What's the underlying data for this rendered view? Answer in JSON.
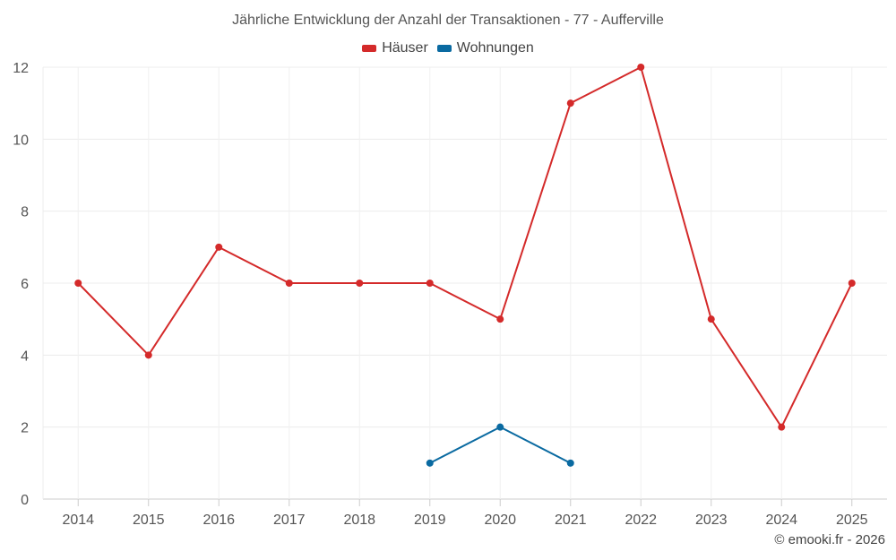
{
  "chart_data": {
    "type": "line",
    "title": "Jährliche Entwicklung der Anzahl der Transaktionen - 77 - Aufferville",
    "x": [
      "2014",
      "2015",
      "2016",
      "2017",
      "2018",
      "2019",
      "2020",
      "2021",
      "2022",
      "2023",
      "2024",
      "2025"
    ],
    "series": [
      {
        "name": "Häuser",
        "color": "#d42a2a",
        "values": [
          6,
          4,
          7,
          6,
          6,
          6,
          5,
          11,
          12,
          5,
          2,
          6
        ]
      },
      {
        "name": "Wohnungen",
        "color": "#0a6aa1",
        "values": [
          null,
          null,
          null,
          null,
          null,
          1,
          2,
          1,
          null,
          null,
          null,
          null
        ]
      }
    ],
    "ylim": [
      0,
      12
    ],
    "yticks": [
      0,
      2,
      4,
      6,
      8,
      10,
      12
    ],
    "xlabel": "",
    "ylabel": "",
    "grid": true,
    "legend": "top-center"
  },
  "credit": "© emooki.fr - 2026"
}
